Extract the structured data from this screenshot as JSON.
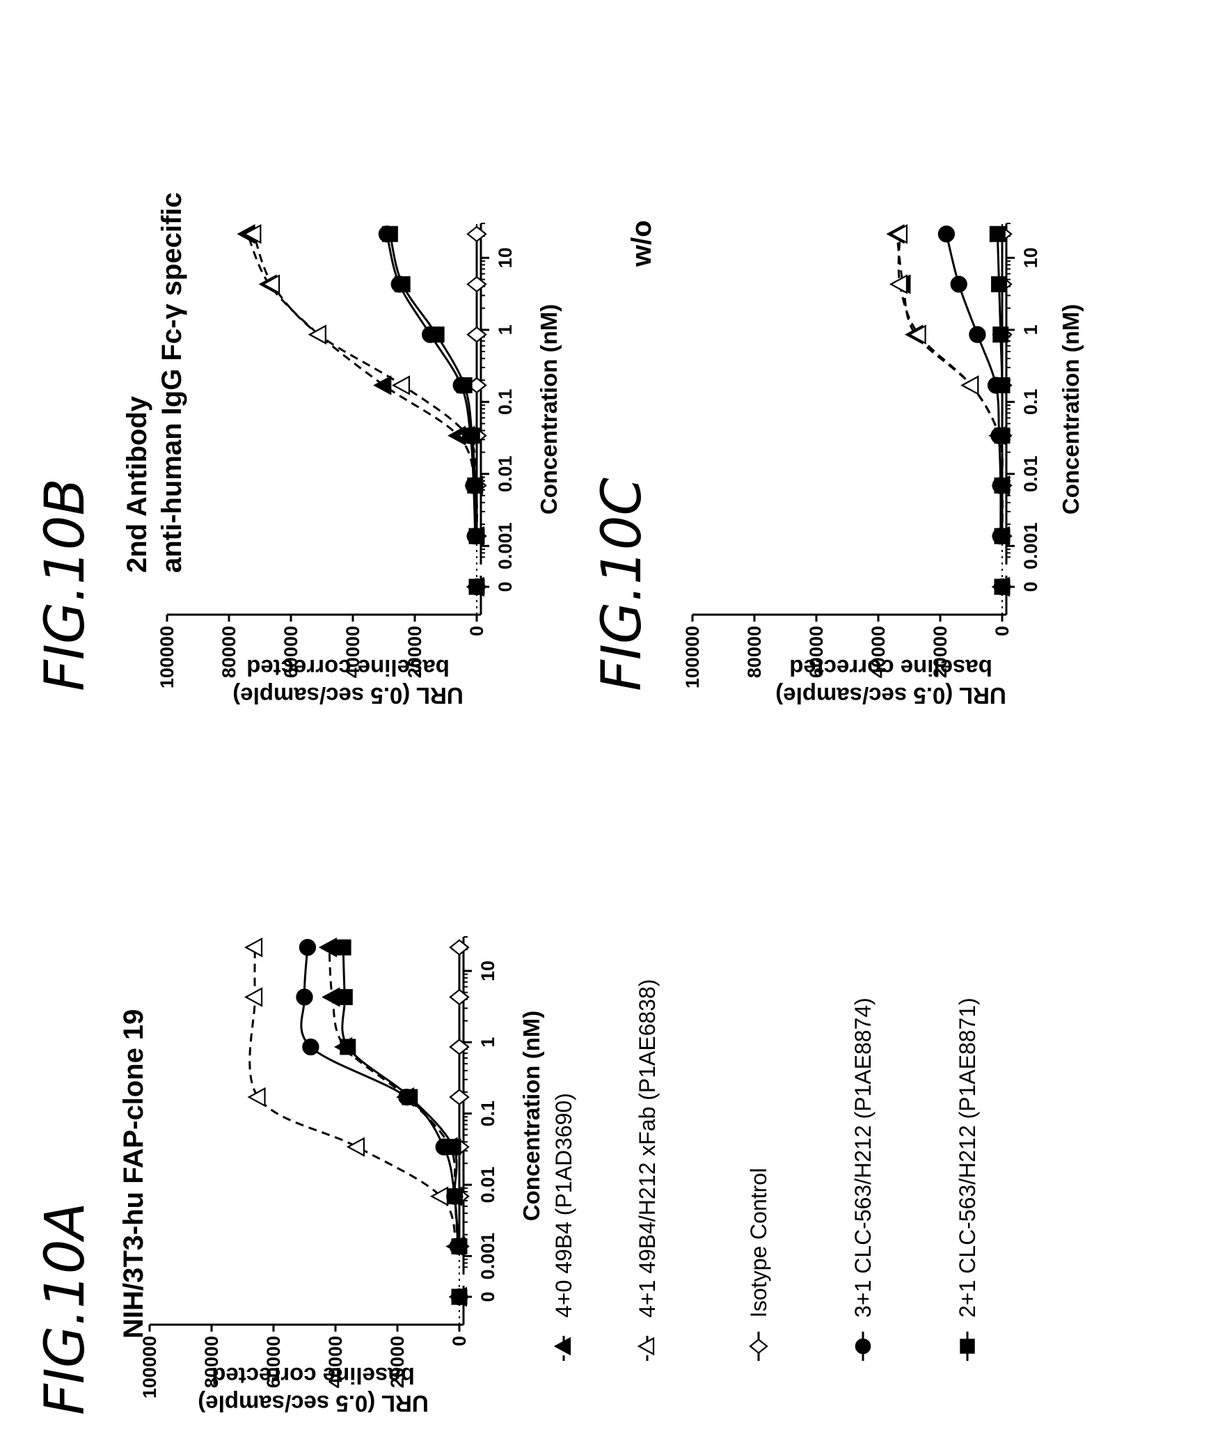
{
  "figures": [
    {
      "label": "FIG.10A",
      "title_line1": "NIH/3T3-hu FAP-clone 19",
      "title_line2": ""
    },
    {
      "label": "FIG.10B",
      "title_line1": "2nd Antibody",
      "title_line2": "anti-human IgG Fc-γ specific"
    },
    {
      "label": "FIG.10C",
      "title_line1": "w/o",
      "title_line2": ""
    }
  ],
  "axes": {
    "xlabel": "Concentration (nM)",
    "ylabel_line1": "URL (0.5 sec/sample)",
    "ylabel_line2": "baseline corrected",
    "yticks": [
      "0",
      "20000",
      "40000",
      "60000",
      "80000",
      "100000"
    ],
    "xticks": [
      "0",
      "0.001",
      "0.01",
      "0.1",
      "1",
      "10"
    ]
  },
  "legend": [
    {
      "label": "4+0 49B4 (P1AD3690)",
      "marker": "filled-triangle",
      "line": "dashed"
    },
    {
      "label": "4+1 49B4/H212 xFab (P1AE6838)",
      "marker": "open-triangle",
      "line": "dashed"
    },
    {
      "label": "Isotype Control",
      "marker": "open-diamond",
      "line": "solid"
    },
    {
      "label": "3+1 CLC-563/H212 (P1AE8874)",
      "marker": "filled-circle",
      "line": "solid"
    },
    {
      "label": "2+1 CLC-563/H212 (P1AE8871)",
      "marker": "filled-square",
      "line": "solid"
    }
  ],
  "chart_data": [
    {
      "type": "scatter",
      "title": "NIH/3T3-hu FAP-clone 19",
      "xlabel": "Concentration (nM)",
      "ylabel": "URL (0.5 sec/sample) baseline corrected",
      "x_scale": "log with zero break",
      "ylim": [
        0,
        100000
      ],
      "x": [
        0,
        0.00137,
        0.0069,
        0.034,
        0.17,
        0.86,
        4.3,
        21.4
      ],
      "series": [
        {
          "name": "4+0 49B4 (P1AD3690)",
          "values": [
            0,
            500,
            1500,
            3000,
            17000,
            37000,
            41000,
            42000
          ]
        },
        {
          "name": "4+1 49B4/H212 xFab (P1AE6838)",
          "values": [
            0,
            1000,
            6000,
            33000,
            65000,
            null,
            66000,
            66000
          ]
        },
        {
          "name": "Isotype Control",
          "values": [
            0,
            0,
            0,
            0,
            0,
            0,
            0,
            0
          ]
        },
        {
          "name": "3+1 CLC-563/H212 (P1AE8874)",
          "values": [
            0,
            500,
            1500,
            5000,
            17000,
            48000,
            50000,
            49000
          ]
        },
        {
          "name": "2+1 CLC-563/H212 (P1AE8871)",
          "values": [
            0,
            0,
            1500,
            2000,
            16000,
            36000,
            37000,
            37500
          ]
        }
      ]
    },
    {
      "type": "scatter",
      "title": "2nd Antibody anti-human IgG Fc-γ specific",
      "xlabel": "Concentration (nM)",
      "ylabel": "URL (0.5 sec/sample) baseline corrected",
      "x_scale": "log with zero break",
      "ylim": [
        0,
        100000
      ],
      "x": [
        0,
        0.00137,
        0.0069,
        0.034,
        0.17,
        0.86,
        4.3,
        21.4
      ],
      "series": [
        {
          "name": "4+0 49B4 (P1AD3690)",
          "values": [
            0,
            0,
            500,
            6000,
            30000,
            51000,
            67000,
            74000
          ]
        },
        {
          "name": "4+1 49B4/H212 xFab (P1AE6838)",
          "values": [
            0,
            0,
            500,
            3000,
            24000,
            51000,
            66000,
            72000
          ]
        },
        {
          "name": "Isotype Control",
          "values": [
            0,
            0,
            0,
            0,
            0,
            0,
            0,
            0
          ]
        },
        {
          "name": "3+1 CLC-563/H212 (P1AE8874)",
          "values": [
            0,
            500,
            1000,
            2000,
            5000,
            15000,
            25000,
            29000
          ]
        },
        {
          "name": "2+1 CLC-563/H212 (P1AE8871)",
          "values": [
            0,
            0,
            500,
            1500,
            4000,
            13000,
            24000,
            28000
          ]
        }
      ]
    },
    {
      "type": "scatter",
      "title": "w/o",
      "xlabel": "Concentration (nM)",
      "ylabel": "URL (0.5 sec/sample) baseline corrected",
      "x_scale": "log with zero break",
      "ylim": [
        0,
        100000
      ],
      "x": [
        0,
        0.00137,
        0.0069,
        0.034,
        0.17,
        0.86,
        4.3,
        21.4
      ],
      "series": [
        {
          "name": "4+0 49B4 (P1AD3690)",
          "values": [
            0,
            0,
            0,
            1000,
            10000,
            28000,
            32000,
            34000
          ]
        },
        {
          "name": "4+1 49B4/H212 xFab (P1AE6838)",
          "values": [
            0,
            0,
            0,
            1000,
            10000,
            27000,
            33000,
            33000
          ]
        },
        {
          "name": "Isotype Control",
          "values": [
            0,
            0,
            0,
            0,
            0,
            0,
            0,
            0
          ]
        },
        {
          "name": "3+1 CLC-563/H212 (P1AE8874)",
          "values": [
            0,
            500,
            500,
            1000,
            2000,
            8000,
            14000,
            18000
          ]
        },
        {
          "name": "2+1 CLC-563/H212 (P1AE8871)",
          "values": [
            0,
            0,
            0,
            0,
            0,
            500,
            1000,
            1500
          ]
        }
      ]
    }
  ]
}
